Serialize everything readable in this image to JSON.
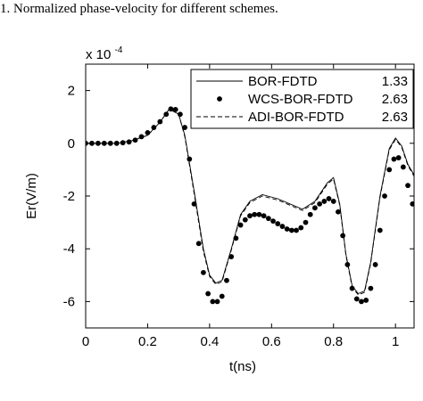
{
  "caption": "1.  Normalized phase-velocity for different schemes.",
  "chart_data": {
    "type": "line",
    "xlabel": "t(ns)",
    "ylabel": "Er(V/m)",
    "y_multiplier": {
      "base": "x 10",
      "exponent": "-4"
    },
    "xlim": [
      0,
      1.06
    ],
    "ylim": [
      -7,
      3
    ],
    "x_ticks": [
      0,
      0.2,
      0.4,
      0.6,
      0.8,
      1
    ],
    "x_tick_labels": [
      "0",
      "0.2",
      "0.4",
      "0.6",
      "0.8",
      "1"
    ],
    "y_ticks": [
      2,
      0,
      -2,
      -4,
      -6
    ],
    "y_tick_labels": [
      "2",
      "0",
      "-2",
      "-4",
      "-6"
    ],
    "grid": false,
    "legend_position": "top-right",
    "legend": [
      {
        "name": "BOR-FDTD",
        "value": "1.33",
        "style": "solid"
      },
      {
        "name": "WCS-BOR-FDTD",
        "value": "2.63",
        "style": "dots"
      },
      {
        "name": "ADI-BOR-FDTD",
        "value": "2.63",
        "style": "dashed"
      }
    ],
    "series": [
      {
        "name": "BOR-FDTD",
        "style": "solid",
        "x": [
          0,
          0.1,
          0.15,
          0.2,
          0.24,
          0.27,
          0.3,
          0.32,
          0.35,
          0.38,
          0.4,
          0.42,
          0.44,
          0.47,
          0.5,
          0.53,
          0.57,
          0.62,
          0.66,
          0.7,
          0.74,
          0.78,
          0.8,
          0.82,
          0.84,
          0.86,
          0.88,
          0.9,
          0.92,
          0.95,
          0.98,
          1.0,
          1.02,
          1.04,
          1.06
        ],
        "y": [
          0,
          0,
          0.1,
          0.3,
          0.8,
          1.3,
          1.1,
          0.3,
          -1.8,
          -4.0,
          -5.0,
          -5.3,
          -5.2,
          -4.0,
          -2.7,
          -2.2,
          -1.95,
          -2.1,
          -2.3,
          -2.5,
          -2.2,
          -1.5,
          -1.3,
          -2.3,
          -4.2,
          -5.4,
          -5.7,
          -5.6,
          -4.5,
          -2.0,
          -0.2,
          0.2,
          -0.1,
          -0.8,
          -1.2
        ]
      },
      {
        "name": "WCS-BOR-FDTD",
        "style": "dots",
        "x": [
          0,
          0.02,
          0.04,
          0.06,
          0.08,
          0.1,
          0.12,
          0.14,
          0.16,
          0.18,
          0.2,
          0.22,
          0.24,
          0.26,
          0.275,
          0.29,
          0.305,
          0.32,
          0.335,
          0.35,
          0.365,
          0.38,
          0.395,
          0.41,
          0.425,
          0.44,
          0.455,
          0.47,
          0.485,
          0.5,
          0.515,
          0.53,
          0.545,
          0.56,
          0.575,
          0.59,
          0.605,
          0.62,
          0.635,
          0.65,
          0.665,
          0.68,
          0.695,
          0.71,
          0.725,
          0.74,
          0.755,
          0.77,
          0.785,
          0.8,
          0.815,
          0.83,
          0.845,
          0.86,
          0.875,
          0.89,
          0.905,
          0.92,
          0.935,
          0.95,
          0.965,
          0.98,
          0.995,
          1.01,
          1.025,
          1.04,
          1.055
        ],
        "y": [
          0,
          0,
          0,
          0,
          0,
          0,
          0.02,
          0.05,
          0.12,
          0.25,
          0.4,
          0.6,
          0.82,
          1.1,
          1.3,
          1.28,
          1.1,
          0.6,
          -0.6,
          -2.3,
          -3.8,
          -4.9,
          -5.7,
          -6.0,
          -6.0,
          -5.8,
          -5.2,
          -4.3,
          -3.6,
          -3.1,
          -2.9,
          -2.75,
          -2.7,
          -2.7,
          -2.75,
          -2.85,
          -2.95,
          -3.05,
          -3.15,
          -3.25,
          -3.3,
          -3.3,
          -3.2,
          -3.0,
          -2.7,
          -2.45,
          -2.3,
          -2.2,
          -2.1,
          -2.2,
          -2.6,
          -3.5,
          -4.6,
          -5.5,
          -5.9,
          -6.0,
          -5.95,
          -5.5,
          -4.6,
          -3.3,
          -2.0,
          -1.0,
          -0.6,
          -0.55,
          -0.9,
          -1.6,
          -2.3
        ]
      },
      {
        "name": "ADI-BOR-FDTD",
        "style": "dashed",
        "x": [
          0,
          0.1,
          0.15,
          0.2,
          0.24,
          0.27,
          0.3,
          0.32,
          0.35,
          0.38,
          0.4,
          0.42,
          0.44,
          0.47,
          0.5,
          0.53,
          0.57,
          0.62,
          0.66,
          0.7,
          0.74,
          0.78,
          0.8,
          0.82,
          0.84,
          0.86,
          0.88,
          0.9,
          0.92,
          0.95,
          0.98,
          1.0,
          1.02,
          1.04,
          1.06
        ],
        "y": [
          0,
          0,
          0.1,
          0.3,
          0.8,
          1.3,
          1.1,
          0.25,
          -1.9,
          -4.1,
          -5.05,
          -5.35,
          -5.25,
          -4.05,
          -2.75,
          -2.25,
          -2.0,
          -2.15,
          -2.35,
          -2.55,
          -2.25,
          -1.55,
          -1.35,
          -2.35,
          -4.25,
          -5.45,
          -5.75,
          -5.65,
          -4.55,
          -2.05,
          -0.25,
          0.15,
          -0.15,
          -0.85,
          -1.25
        ]
      }
    ]
  }
}
